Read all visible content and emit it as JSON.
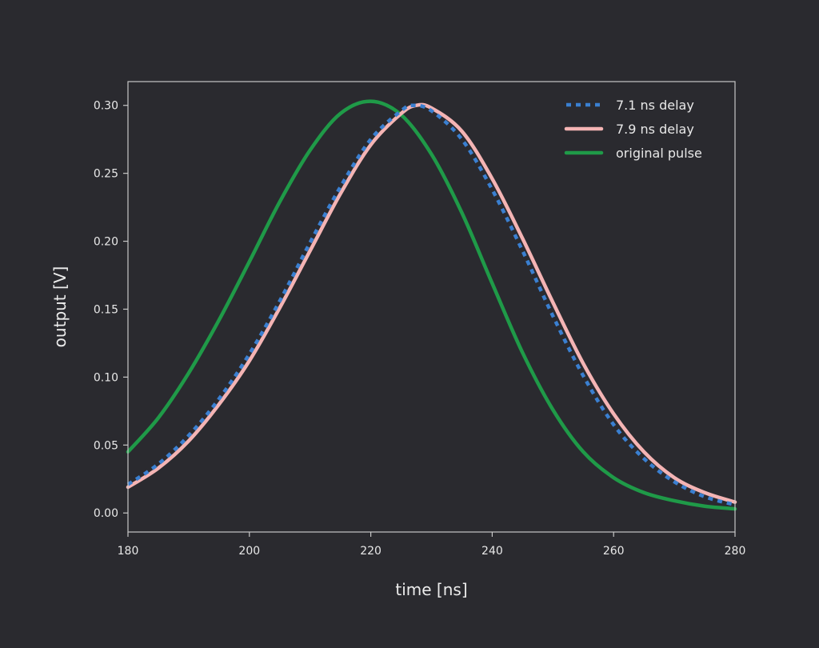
{
  "chart_data": {
    "type": "line",
    "title": "",
    "xlabel": "time [ns]",
    "ylabel": "output [V]",
    "xlim": [
      180,
      280
    ],
    "ylim": [
      -0.014,
      0.3175
    ],
    "xticks": [
      180,
      200,
      220,
      240,
      260,
      280
    ],
    "xtick_labels": [
      "180",
      "200",
      "220",
      "240",
      "260",
      "280"
    ],
    "yticks": [
      0.0,
      0.05,
      0.1,
      0.15,
      0.2,
      0.25,
      0.3
    ],
    "ytick_labels": [
      "0.00",
      "0.05",
      "0.10",
      "0.15",
      "0.20",
      "0.25",
      "0.30"
    ],
    "grid": false,
    "legend_position": "top-right",
    "colors": {
      "background": "#2a2a2f",
      "axes": "#c8c8c8",
      "text": "#e8e8e8"
    },
    "series": [
      {
        "name": "7.1 ns delay",
        "color": "#3a7fd0",
        "dash": "dotted",
        "x": [
          180,
          185,
          190,
          195,
          200,
          205,
          210,
          215,
          220,
          225,
          227,
          230,
          235,
          240,
          245,
          250,
          255,
          260,
          265,
          270,
          275,
          280
        ],
        "y": [
          0.021,
          0.036,
          0.057,
          0.084,
          0.117,
          0.156,
          0.199,
          0.24,
          0.275,
          0.296,
          0.3,
          0.296,
          0.275,
          0.238,
          0.193,
          0.145,
          0.101,
          0.065,
          0.04,
          0.023,
          0.012,
          0.006
        ]
      },
      {
        "name": "7.9 ns delay",
        "color": "#f4b4b4",
        "dash": "solid",
        "x": [
          180,
          185,
          190,
          195,
          200,
          205,
          210,
          215,
          220,
          225,
          227.5,
          230,
          235,
          240,
          245,
          250,
          255,
          260,
          265,
          270,
          275,
          280
        ],
        "y": [
          0.019,
          0.033,
          0.053,
          0.08,
          0.112,
          0.151,
          0.193,
          0.235,
          0.271,
          0.294,
          0.3,
          0.298,
          0.281,
          0.246,
          0.202,
          0.155,
          0.11,
          0.073,
          0.045,
          0.026,
          0.015,
          0.008
        ]
      },
      {
        "name": "original pulse",
        "color": "#1f9a48",
        "dash": "solid",
        "x": [
          180,
          185,
          190,
          195,
          200,
          205,
          210,
          215,
          220,
          225,
          230,
          235,
          240,
          245,
          250,
          255,
          260,
          265,
          270,
          275,
          280
        ],
        "y": [
          0.045,
          0.07,
          0.103,
          0.142,
          0.185,
          0.229,
          0.267,
          0.294,
          0.303,
          0.293,
          0.264,
          0.221,
          0.169,
          0.118,
          0.076,
          0.045,
          0.026,
          0.015,
          0.009,
          0.005,
          0.003
        ]
      }
    ]
  }
}
